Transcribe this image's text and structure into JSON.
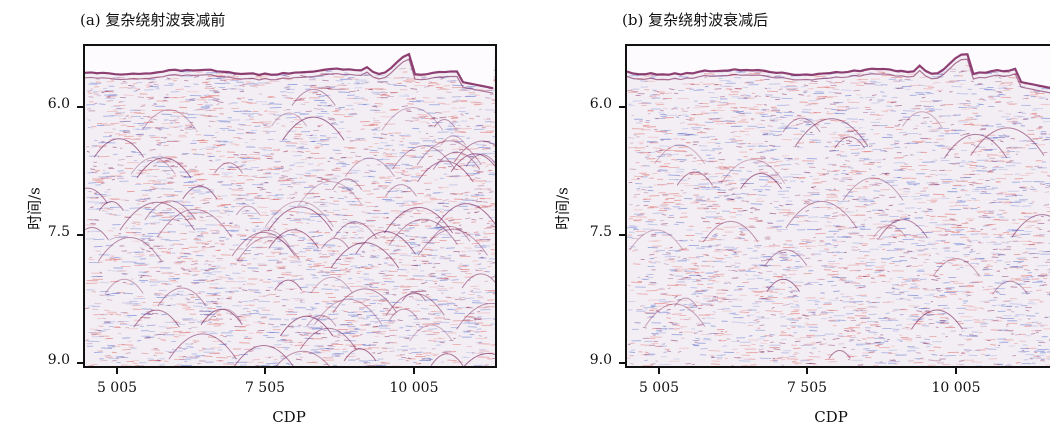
{
  "chart_data": [
    {
      "type": "heatmap",
      "title": "(a) 复杂绕射波衰减前",
      "xlabel": "CDP",
      "ylabel": "时间/s",
      "x_ticks": [
        "5 005",
        "7 505",
        "10 005"
      ],
      "y_ticks": [
        "6.0",
        "7.5",
        "9.0"
      ],
      "ylim": [
        9.0,
        5.7
      ],
      "colors": {
        "positive": "#7a1f5a",
        "negative": "#4a63c8",
        "background": "#f3eef4"
      }
    },
    {
      "type": "heatmap",
      "title": "(b) 复杂绕射波衰减后",
      "xlabel": "CDP",
      "ylabel": "时间/s",
      "x_ticks": [
        "5 005",
        "7 505",
        "10 005"
      ],
      "y_ticks": [
        "6.0",
        "7.5",
        "9.0"
      ],
      "ylim": [
        9.0,
        5.7
      ],
      "colors": {
        "positive": "#7a1f5a",
        "negative": "#4a63c8",
        "background": "#f3eef4"
      }
    }
  ]
}
